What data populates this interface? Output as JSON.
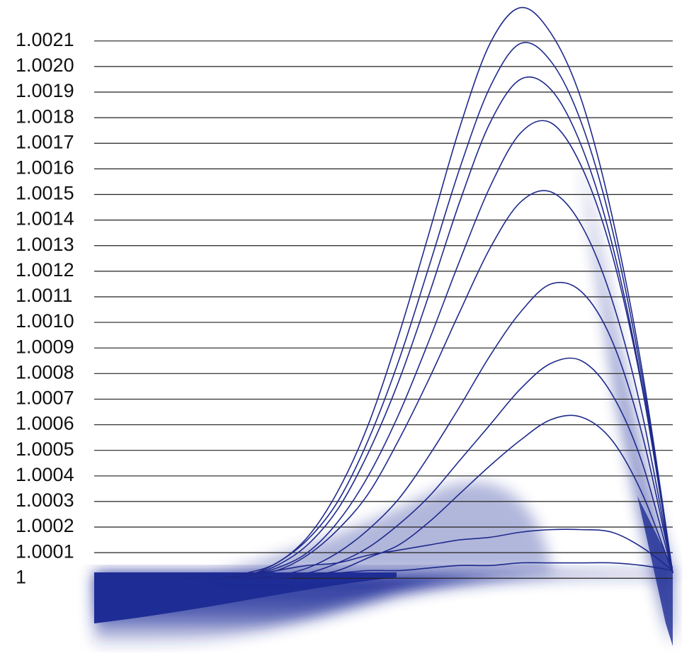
{
  "chart_data": {
    "type": "line",
    "categories": [
      null,
      null,
      null,
      null,
      null,
      null,
      null,
      null,
      null,
      null,
      null,
      null,
      null,
      null,
      null,
      null,
      null,
      null,
      null,
      null
    ],
    "series": [
      {
        "color": "#1f2a8c",
        "values": [
          1,
          1,
          1,
          1,
          1,
          1.00002,
          1.00006,
          1.00016,
          1.00034,
          1.0006,
          1.00095,
          1.00135,
          1.00176,
          1.00209,
          1.00223,
          1.00213,
          1.00187,
          1.00142,
          1.00081,
          1.00002
        ]
      },
      {
        "color": "#1f2a8c",
        "values": [
          1,
          1,
          1,
          1,
          1,
          1.00001,
          1.00006,
          1.00015,
          1.0003,
          1.00054,
          1.00085,
          1.00122,
          1.0016,
          1.00192,
          1.00209,
          1.00202,
          1.00178,
          1.00137,
          1.00078,
          1.00002
        ]
      },
      {
        "color": "#1f2a8c",
        "values": [
          1,
          1,
          1,
          1,
          1,
          1.00001,
          1.00005,
          1.00013,
          1.00027,
          1.00049,
          1.00077,
          1.00111,
          1.00147,
          1.00178,
          1.00195,
          1.00191,
          1.00169,
          1.00131,
          1.00075,
          1.00002
        ]
      },
      {
        "color": "#1f2a8c",
        "values": [
          1,
          1,
          1,
          1,
          1,
          1.00001,
          1.00004,
          1.0001,
          1.00022,
          1.0004,
          1.00064,
          1.00093,
          1.00124,
          1.00153,
          1.00174,
          1.00178,
          1.00161,
          1.00127,
          1.00074,
          1.00002
        ]
      },
      {
        "color": "#1f2a8c",
        "values": [
          1,
          1,
          1,
          1,
          1,
          1.00001,
          1.00003,
          1.00009,
          1.00019,
          1.00033,
          1.00054,
          1.00078,
          1.00104,
          1.00129,
          1.00147,
          1.00151,
          1.00138,
          1.00109,
          1.00064,
          1.00002
        ]
      },
      {
        "color": "#1f2a8c",
        "values": [
          1,
          1,
          1,
          1,
          1,
          1,
          1.00001,
          1.00004,
          1.0001,
          1.00019,
          1.00031,
          1.00048,
          1.00067,
          1.00087,
          1.00104,
          1.00115,
          1.00112,
          1.00093,
          1.00056,
          1.00002
        ]
      },
      {
        "color": "#1f2a8c",
        "values": [
          1,
          1,
          1,
          1,
          1,
          1,
          1.00001,
          1.00002,
          1.00006,
          1.00012,
          1.00021,
          1.00032,
          1.00046,
          1.0006,
          1.00074,
          1.00084,
          1.00085,
          1.00072,
          1.00045,
          1.00002
        ]
      },
      {
        "color": "#1f2a8c",
        "values": [
          1,
          1,
          1,
          1,
          1,
          1,
          1,
          1.00001,
          1.00003,
          1.00008,
          1.00013,
          1.00022,
          1.00033,
          1.00044,
          1.00054,
          1.00062,
          1.00063,
          1.00054,
          1.00033,
          1.00002
        ]
      },
      {
        "color": "#1f2a8c",
        "values": [
          1,
          1,
          1,
          1,
          1,
          1.00001,
          1.00003,
          1.00005,
          1.00006,
          1.00009,
          1.00011,
          1.00013,
          1.00015,
          1.00016,
          1.00018,
          1.00019,
          1.00019,
          1.00018,
          1.00012,
          1.00003
        ]
      },
      {
        "color": "#1f2a8c",
        "values": [
          1,
          1,
          1,
          1,
          1,
          1,
          1.00001,
          1.00001,
          1.00002,
          1.00003,
          1.00003,
          1.00004,
          1.00005,
          1.00005,
          1.00006,
          1.00006,
          1.00006,
          1.00006,
          1.00005,
          1.00003
        ]
      }
    ],
    "ylim": [
      0.99971,
      1.00226
    ],
    "yticks": [
      1,
      1.0001,
      1.0002,
      1.0003,
      1.0004,
      1.0005,
      1.0006,
      1.0007,
      1.0008,
      1.0009,
      {
        "value": 1.001,
        "label": "1.0010"
      },
      1.0011,
      1.0012,
      1.0013,
      1.0014,
      1.0015,
      1.0016,
      1.0017,
      1.0018,
      1.0019,
      {
        "value": 1.002,
        "label": "1.0020"
      },
      1.0021
    ],
    "grid": true
  }
}
